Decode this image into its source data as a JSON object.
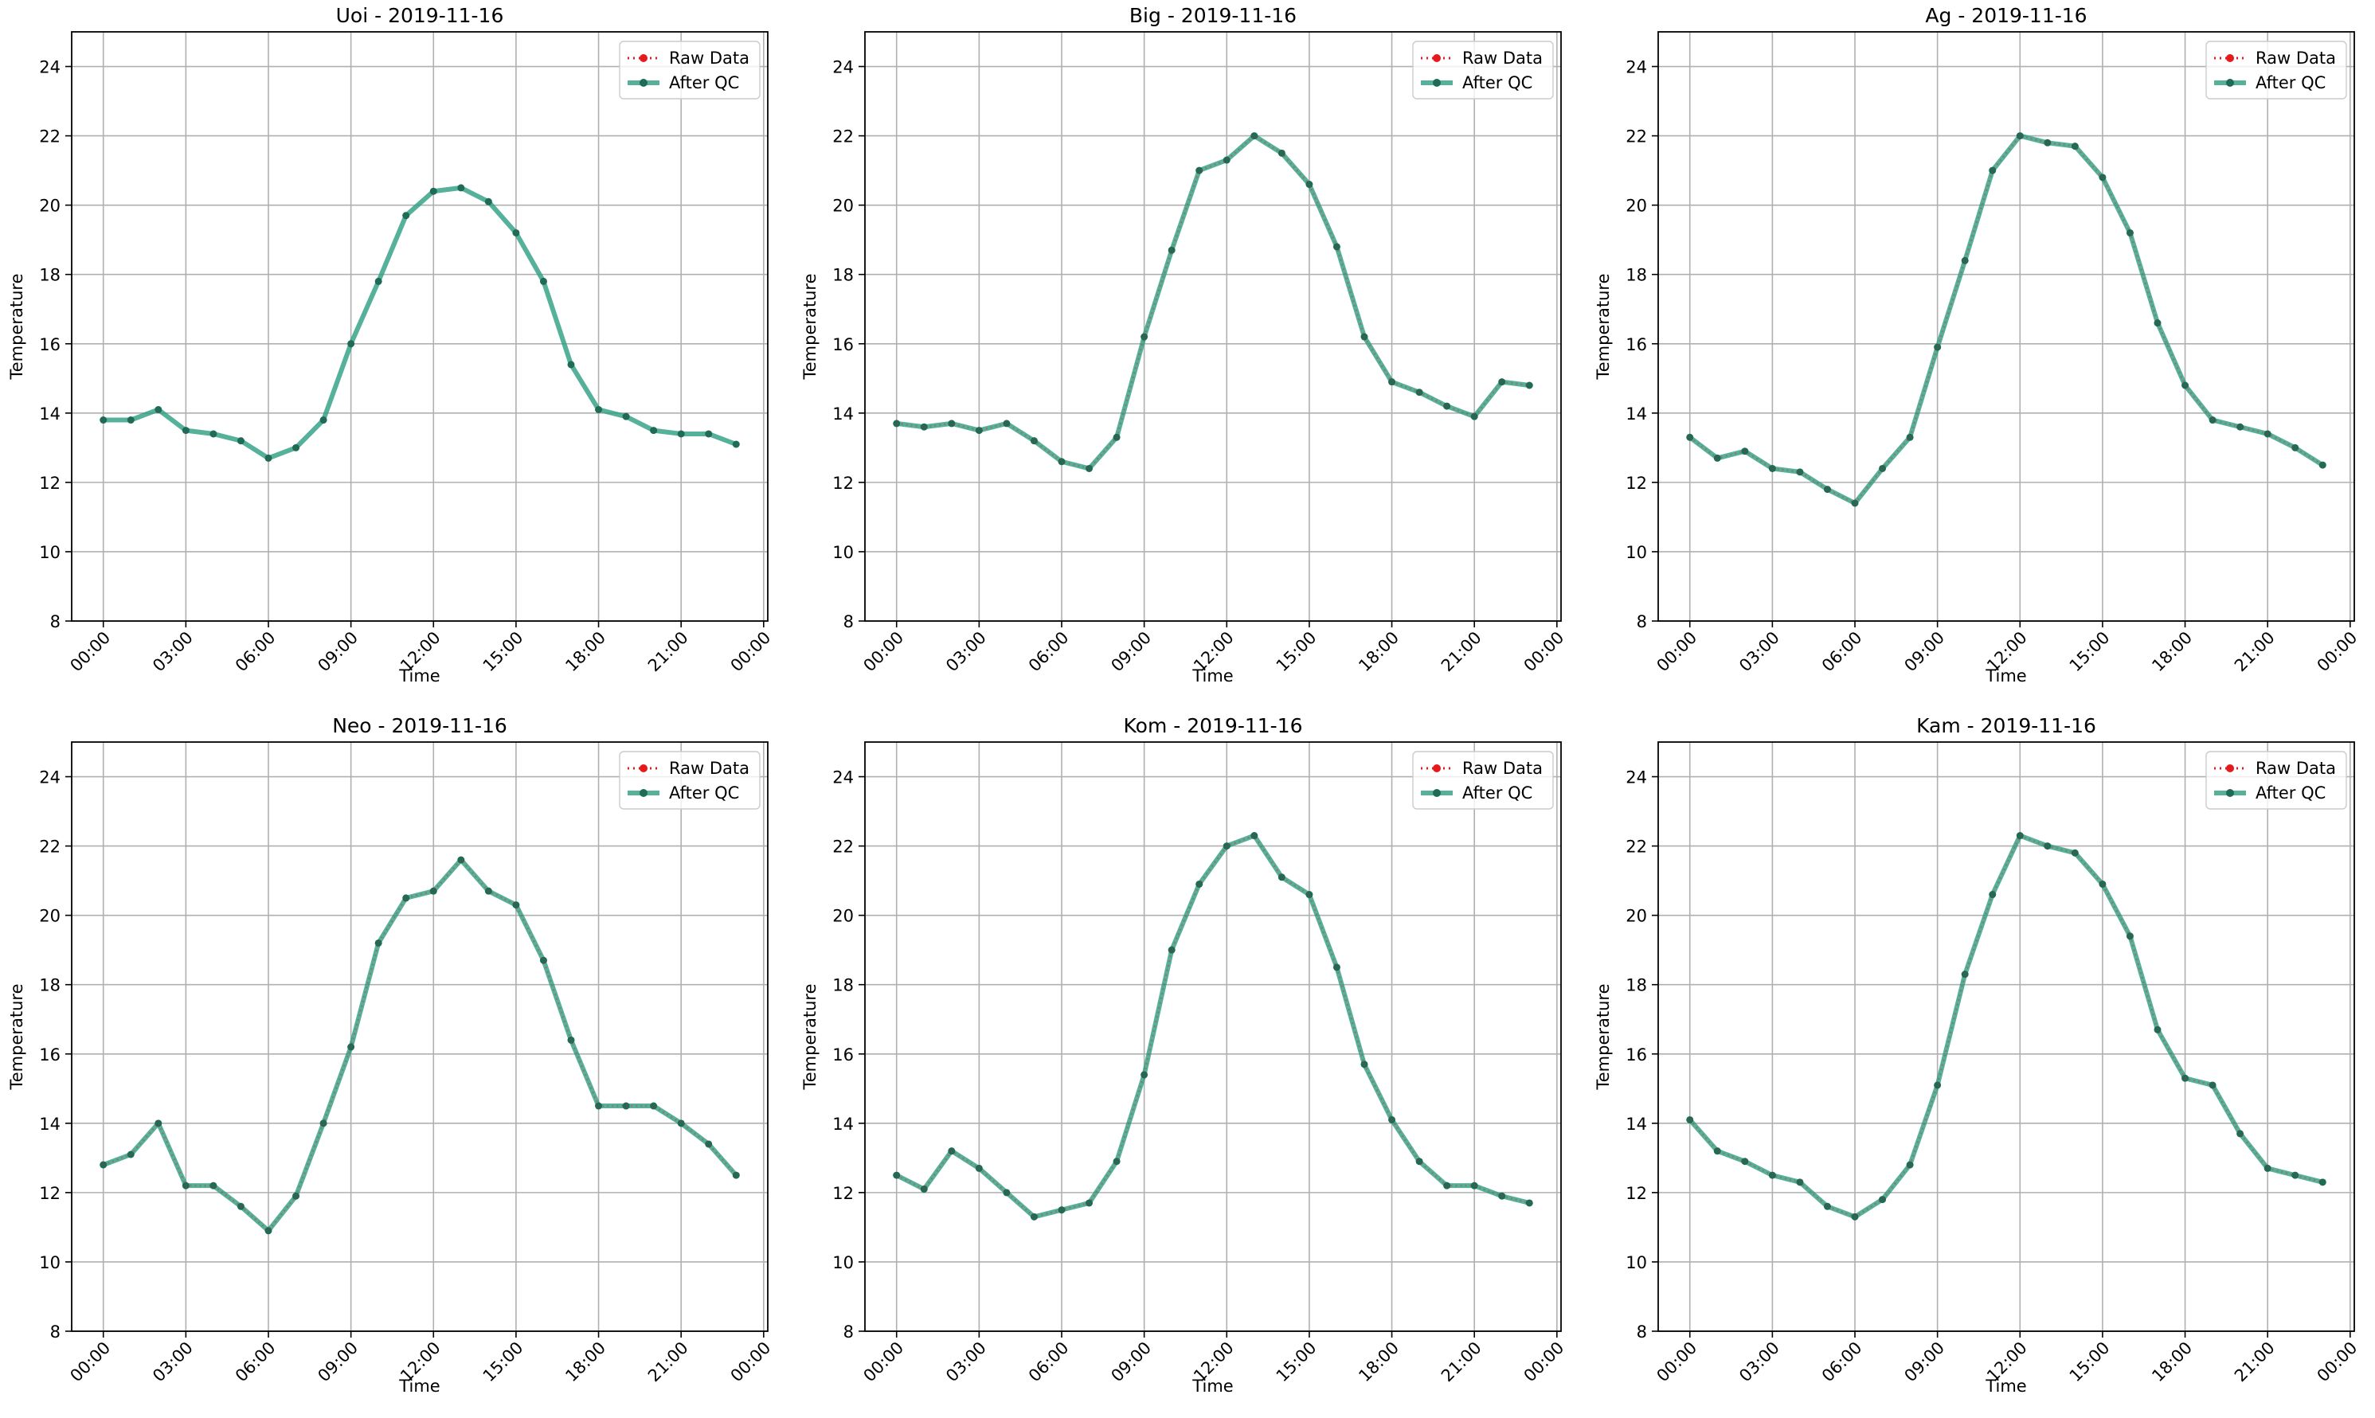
{
  "legend": {
    "raw_label": "Raw Data",
    "qc_label": "After QC"
  },
  "colors": {
    "raw": "#e41a1c",
    "qc": "#2a9d7f",
    "qc_marker": "#1f6b55",
    "grid": "#b0b0b0"
  },
  "chart_data": [
    {
      "type": "line",
      "title": "Uoi - 2019-11-16",
      "xlabel": "Time",
      "ylabel": "Temperature",
      "ylim": [
        8,
        25
      ],
      "yticks": [
        8,
        10,
        12,
        14,
        16,
        18,
        20,
        22,
        24
      ],
      "xticks": [
        "00:00",
        "03:00",
        "06:00",
        "09:00",
        "12:00",
        "15:00",
        "18:00",
        "21:00",
        "00:00"
      ],
      "grid": true,
      "legend_position": "top-right",
      "raw_visible": false,
      "series": [
        {
          "name": "Raw Data",
          "values": [
            13.8,
            13.8,
            14.1,
            13.5,
            13.4,
            13.2,
            12.7,
            13.0,
            13.8,
            16.0,
            17.8,
            19.7,
            20.4,
            20.5,
            20.1,
            19.2,
            17.8,
            15.4,
            14.1,
            13.9,
            13.5,
            13.4,
            13.4,
            13.1
          ]
        },
        {
          "name": "After QC",
          "values": [
            13.8,
            13.8,
            14.1,
            13.5,
            13.4,
            13.2,
            12.7,
            13.0,
            13.8,
            16.0,
            17.8,
            19.7,
            20.4,
            20.5,
            20.1,
            19.2,
            17.8,
            15.4,
            14.1,
            13.9,
            13.5,
            13.4,
            13.4,
            13.1
          ]
        }
      ]
    },
    {
      "type": "line",
      "title": "Big - 2019-11-16",
      "xlabel": "Time",
      "ylabel": "Temperature",
      "ylim": [
        8,
        25
      ],
      "yticks": [
        8,
        10,
        12,
        14,
        16,
        18,
        20,
        22,
        24
      ],
      "xticks": [
        "00:00",
        "03:00",
        "06:00",
        "09:00",
        "12:00",
        "15:00",
        "18:00",
        "21:00",
        "00:00"
      ],
      "grid": true,
      "legend_position": "top-right",
      "raw_visible": true,
      "series": [
        {
          "name": "Raw Data",
          "values": [
            13.7,
            13.6,
            13.7,
            13.5,
            13.7,
            13.2,
            12.6,
            12.4,
            13.3,
            16.2,
            18.7,
            21.0,
            21.3,
            22.0,
            21.5,
            20.6,
            18.8,
            16.2,
            14.9,
            14.6,
            14.2,
            13.9,
            14.9,
            14.8
          ]
        },
        {
          "name": "After QC",
          "values": [
            13.7,
            13.6,
            13.7,
            13.5,
            13.7,
            13.2,
            12.6,
            12.4,
            13.3,
            16.2,
            18.7,
            21.0,
            21.3,
            22.0,
            21.5,
            20.6,
            18.8,
            16.2,
            14.9,
            14.6,
            14.2,
            13.9,
            14.9,
            14.8
          ]
        }
      ]
    },
    {
      "type": "line",
      "title": "Ag - 2019-11-16",
      "xlabel": "Time",
      "ylabel": "Temperature",
      "ylim": [
        8,
        25
      ],
      "yticks": [
        8,
        10,
        12,
        14,
        16,
        18,
        20,
        22,
        24
      ],
      "xticks": [
        "00:00",
        "03:00",
        "06:00",
        "09:00",
        "12:00",
        "15:00",
        "18:00",
        "21:00",
        "00:00"
      ],
      "grid": true,
      "legend_position": "top-right",
      "raw_visible": true,
      "series": [
        {
          "name": "Raw Data",
          "values": [
            13.3,
            12.7,
            12.9,
            12.4,
            12.3,
            11.8,
            11.4,
            12.4,
            13.3,
            15.9,
            18.4,
            21.0,
            22.0,
            21.8,
            21.7,
            20.8,
            19.2,
            16.6,
            14.8,
            13.8,
            13.6,
            13.4,
            13.0,
            12.5
          ]
        },
        {
          "name": "After QC",
          "values": [
            13.3,
            12.7,
            12.9,
            12.4,
            12.3,
            11.8,
            11.4,
            12.4,
            13.3,
            15.9,
            18.4,
            21.0,
            22.0,
            21.8,
            21.7,
            20.8,
            19.2,
            16.6,
            14.8,
            13.8,
            13.6,
            13.4,
            13.0,
            12.5
          ]
        }
      ]
    },
    {
      "type": "line",
      "title": "Neo - 2019-11-16",
      "xlabel": "Time",
      "ylabel": "Temperature",
      "ylim": [
        8,
        25
      ],
      "yticks": [
        8,
        10,
        12,
        14,
        16,
        18,
        20,
        22,
        24
      ],
      "xticks": [
        "00:00",
        "03:00",
        "06:00",
        "09:00",
        "12:00",
        "15:00",
        "18:00",
        "21:00",
        "00:00"
      ],
      "grid": true,
      "legend_position": "top-right",
      "raw_visible": true,
      "series": [
        {
          "name": "Raw Data",
          "values": [
            12.8,
            13.1,
            14.0,
            12.2,
            12.2,
            11.6,
            10.9,
            11.9,
            14.0,
            16.2,
            19.2,
            20.5,
            20.7,
            21.6,
            20.7,
            20.3,
            18.7,
            16.4,
            14.5,
            14.5,
            14.5,
            14.0,
            13.4,
            12.5
          ]
        },
        {
          "name": "After QC",
          "values": [
            12.8,
            13.1,
            14.0,
            12.2,
            12.2,
            11.6,
            10.9,
            11.9,
            14.0,
            16.2,
            19.2,
            20.5,
            20.7,
            21.6,
            20.7,
            20.3,
            18.7,
            16.4,
            14.5,
            14.5,
            14.5,
            14.0,
            13.4,
            12.5
          ]
        }
      ]
    },
    {
      "type": "line",
      "title": "Kom - 2019-11-16",
      "xlabel": "Time",
      "ylabel": "Temperature",
      "ylim": [
        8,
        25
      ],
      "yticks": [
        8,
        10,
        12,
        14,
        16,
        18,
        20,
        22,
        24
      ],
      "xticks": [
        "00:00",
        "03:00",
        "06:00",
        "09:00",
        "12:00",
        "15:00",
        "18:00",
        "21:00",
        "00:00"
      ],
      "grid": true,
      "legend_position": "top-right",
      "raw_visible": true,
      "series": [
        {
          "name": "Raw Data",
          "values": [
            12.5,
            12.1,
            13.2,
            12.7,
            12.0,
            11.3,
            11.5,
            11.7,
            12.9,
            15.4,
            19.0,
            20.9,
            22.0,
            22.3,
            21.1,
            20.6,
            18.5,
            15.7,
            14.1,
            12.9,
            12.2,
            12.2,
            11.9,
            11.7
          ]
        },
        {
          "name": "After QC",
          "values": [
            12.5,
            12.1,
            13.2,
            12.7,
            12.0,
            11.3,
            11.5,
            11.7,
            12.9,
            15.4,
            19.0,
            20.9,
            22.0,
            22.3,
            21.1,
            20.6,
            18.5,
            15.7,
            14.1,
            12.9,
            12.2,
            12.2,
            11.9,
            11.7
          ]
        }
      ]
    },
    {
      "type": "line",
      "title": "Kam - 2019-11-16",
      "xlabel": "Time",
      "ylabel": "Temperature",
      "ylim": [
        8,
        25
      ],
      "yticks": [
        8,
        10,
        12,
        14,
        16,
        18,
        20,
        22,
        24
      ],
      "xticks": [
        "00:00",
        "03:00",
        "06:00",
        "09:00",
        "12:00",
        "15:00",
        "18:00",
        "21:00",
        "00:00"
      ],
      "grid": true,
      "legend_position": "top-right",
      "raw_visible": true,
      "series": [
        {
          "name": "Raw Data",
          "values": [
            14.1,
            13.2,
            12.9,
            12.5,
            12.3,
            11.6,
            11.3,
            11.8,
            12.8,
            15.1,
            18.3,
            20.6,
            22.3,
            22.0,
            21.8,
            20.9,
            19.4,
            16.7,
            15.3,
            15.1,
            13.7,
            12.7,
            12.5,
            12.3
          ]
        },
        {
          "name": "After QC",
          "values": [
            14.1,
            13.2,
            12.9,
            12.5,
            12.3,
            11.6,
            11.3,
            11.8,
            12.8,
            15.1,
            18.3,
            20.6,
            22.3,
            22.0,
            21.8,
            20.9,
            19.4,
            16.7,
            15.3,
            15.1,
            13.7,
            12.7,
            12.5,
            12.3
          ]
        }
      ]
    }
  ]
}
